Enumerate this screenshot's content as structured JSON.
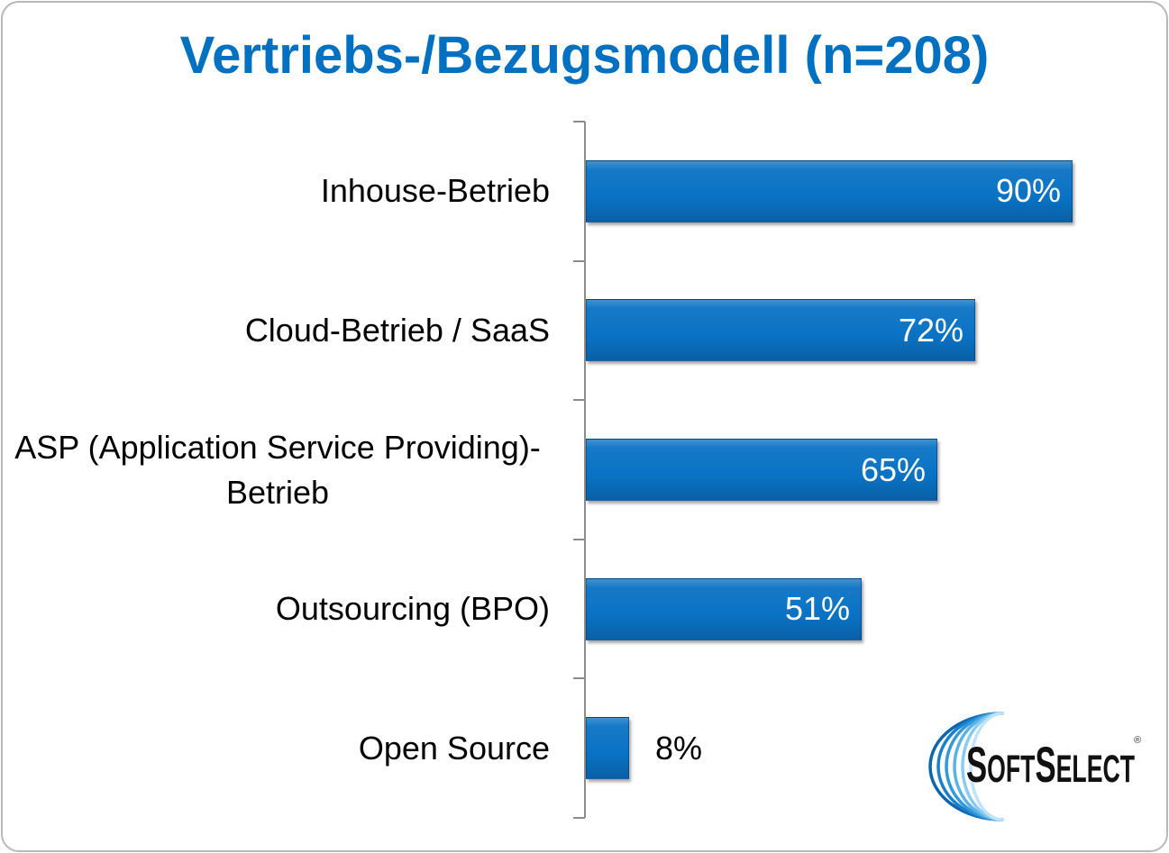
{
  "chart_data": {
    "type": "bar",
    "orientation": "horizontal",
    "title": "Vertriebs-/Bezugsmodell (n=208)",
    "categories": [
      "Inhouse-Betrieb",
      "Cloud-Betrieb / SaaS",
      "ASP (Application Service Providing)-Betrieb",
      "Outsourcing (BPO)",
      "Open Source"
    ],
    "values": [
      90,
      72,
      65,
      51,
      8
    ],
    "data_labels": [
      "90%",
      "72%",
      "65%",
      "51%",
      "8%"
    ],
    "xlim": [
      0,
      100
    ],
    "grid": false,
    "legend": "none",
    "colors": {
      "title": "#0070C0",
      "bar": "#0A72C4",
      "axis": "#8C8C8C",
      "label_inside": "#FFFFFF",
      "label_outside": "#000000"
    }
  },
  "logo": {
    "icon": "swoosh-logo-icon",
    "words": [
      "SOFT",
      "SELECT"
    ],
    "registered": "®",
    "arc_colors": [
      "#0B66B0",
      "#1A80CC",
      "#3399DB",
      "#5BB2E8",
      "#8CCBF1",
      "#BFE3F8"
    ]
  }
}
